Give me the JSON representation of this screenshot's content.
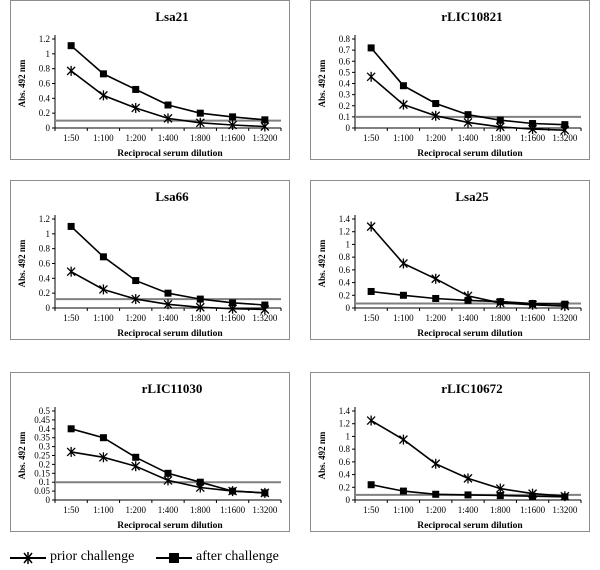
{
  "legend": {
    "prior_label": "prior challenge",
    "after_label": "after challenge"
  },
  "chart_data": [
    {
      "type": "line",
      "title": "Lsa21",
      "ylabel": "Abs. 492 nm",
      "xlabel": "Reciprocal  serum dilution",
      "categories": [
        "1:50",
        "1:100",
        "1:200",
        "1:400",
        "1:800",
        "1:1600",
        "1:3200"
      ],
      "ylim": [
        0,
        1.2
      ],
      "yticks": [
        0,
        0.2,
        0.4,
        0.6,
        0.8,
        1,
        1.2
      ],
      "ytick_labels": [
        "0",
        "0.2",
        "0.4",
        "0.6",
        "0.8",
        "1",
        "1.2"
      ],
      "cutoff": 0.1,
      "series": [
        {
          "name": "prior challenge",
          "marker": "star",
          "values": [
            0.77,
            0.44,
            0.27,
            0.13,
            0.07,
            0.04,
            0.02
          ]
        },
        {
          "name": "after challenge",
          "marker": "square",
          "values": [
            1.11,
            0.73,
            0.52,
            0.31,
            0.2,
            0.15,
            0.11
          ]
        }
      ]
    },
    {
      "type": "line",
      "title": "rLIC10821",
      "ylabel": "Abs. 492 nm",
      "xlabel": "Reciprocal  serum dilution",
      "categories": [
        "1:50",
        "1:100",
        "1:200",
        "1:400",
        "1:800",
        "1:1600",
        "1:3200"
      ],
      "ylim": [
        0,
        0.8
      ],
      "yticks": [
        0,
        0.1,
        0.2,
        0.3,
        0.4,
        0.5,
        0.6,
        0.7,
        0.8
      ],
      "ytick_labels": [
        "0",
        "0.1",
        "0.2",
        "0.3",
        "0.4",
        "0.5",
        "0.6",
        "0.7",
        "0.8"
      ],
      "cutoff": 0.1,
      "series": [
        {
          "name": "prior challenge",
          "marker": "star",
          "values": [
            0.46,
            0.21,
            0.11,
            0.05,
            0.01,
            -0.01,
            -0.02
          ]
        },
        {
          "name": "after challenge",
          "marker": "square",
          "values": [
            0.72,
            0.38,
            0.22,
            0.12,
            0.07,
            0.04,
            0.03
          ]
        }
      ]
    },
    {
      "type": "line",
      "title": "Lsa66",
      "ylabel": "Abs. 492 nm",
      "xlabel": "Reciprocal  serum dilution",
      "categories": [
        "1:50",
        "1:100",
        "1:200",
        "1:400",
        "1:800",
        "1:1600",
        "1:3200"
      ],
      "ylim": [
        0,
        1.2
      ],
      "yticks": [
        0,
        0.2,
        0.4,
        0.6,
        0.8,
        1,
        1.2
      ],
      "ytick_labels": [
        "0",
        "0.2",
        "0.4",
        "0.6",
        "0.8",
        "1",
        "1.2"
      ],
      "cutoff": 0.12,
      "series": [
        {
          "name": "prior challenge",
          "marker": "star",
          "values": [
            0.49,
            0.25,
            0.12,
            0.05,
            0.01,
            -0.01,
            -0.02
          ]
        },
        {
          "name": "after challenge",
          "marker": "square",
          "values": [
            1.1,
            0.69,
            0.37,
            0.2,
            0.12,
            0.07,
            0.04
          ]
        }
      ]
    },
    {
      "type": "line",
      "title": "Lsa25",
      "ylabel": "Abs. 492 nm",
      "xlabel": "Reciprocal  serum dilution",
      "categories": [
        "1:50",
        "1:100",
        "1:200",
        "1:400",
        "1:800",
        "1:1600",
        "1:3200"
      ],
      "ylim": [
        0,
        1.4
      ],
      "yticks": [
        0,
        0.2,
        0.4,
        0.6,
        0.8,
        1,
        1.2,
        1.4
      ],
      "ytick_labels": [
        "0",
        "0.2",
        "0.4",
        "0.6",
        "0.8",
        "1",
        "1.2",
        "1.4"
      ],
      "cutoff": 0.07,
      "series": [
        {
          "name": "prior challenge",
          "marker": "star",
          "values": [
            1.28,
            0.7,
            0.46,
            0.19,
            0.08,
            0.05,
            0.03
          ]
        },
        {
          "name": "after challenge",
          "marker": "square",
          "values": [
            0.26,
            0.2,
            0.15,
            0.12,
            0.1,
            0.07,
            0.06
          ]
        }
      ]
    },
    {
      "type": "line",
      "title": "rLIC11030",
      "ylabel": "Abs. 492 nm",
      "xlabel": "Reciprocal  serum dilution",
      "categories": [
        "1:50",
        "1:100",
        "1:200",
        "1:400",
        "1:800",
        "1:1600",
        "1:3200"
      ],
      "ylim": [
        0,
        0.5
      ],
      "yticks": [
        0,
        0.05,
        0.1,
        0.15,
        0.2,
        0.25,
        0.3,
        0.35,
        0.4,
        0.45,
        0.5
      ],
      "ytick_labels": [
        "0",
        "0.05",
        "0.1",
        "0.15",
        "0.2",
        "0.25",
        "0.3",
        "0.35",
        "0.4",
        "0.45",
        "0.5"
      ],
      "cutoff": 0.1,
      "series": [
        {
          "name": "prior challenge",
          "marker": "star",
          "values": [
            0.27,
            0.24,
            0.19,
            0.11,
            0.07,
            0.05,
            0.04
          ]
        },
        {
          "name": "after challenge",
          "marker": "square",
          "values": [
            0.4,
            0.35,
            0.24,
            0.15,
            0.1,
            0.05,
            0.04
          ]
        }
      ]
    },
    {
      "type": "line",
      "title": "rLIC10672",
      "ylabel": "Abs. 492 nm",
      "xlabel": "Reciprocal  serum dilution",
      "categories": [
        "1:50",
        "1:100",
        "1:200",
        "1:400",
        "1:800",
        "1:1600",
        "1:3200"
      ],
      "ylim": [
        0,
        1.4
      ],
      "yticks": [
        0,
        0.2,
        0.4,
        0.6,
        0.8,
        1,
        1.2,
        1.4
      ],
      "ytick_labels": [
        "0",
        "0.2",
        "0.4",
        "0.6",
        "0.8",
        "1",
        "1.2",
        "1.4"
      ],
      "cutoff": 0.08,
      "series": [
        {
          "name": "prior challenge",
          "marker": "star",
          "values": [
            1.25,
            0.95,
            0.57,
            0.34,
            0.18,
            0.1,
            0.06
          ]
        },
        {
          "name": "after challenge",
          "marker": "square",
          "values": [
            0.24,
            0.14,
            0.09,
            0.08,
            0.07,
            0.06,
            0.05
          ]
        }
      ]
    }
  ]
}
